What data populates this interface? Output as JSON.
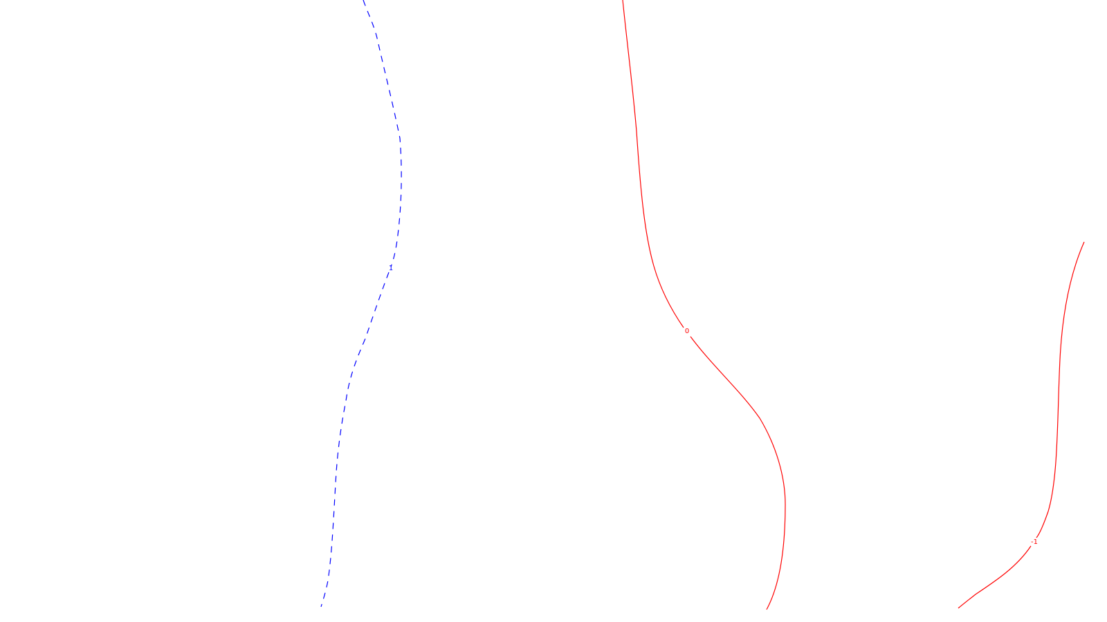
{
  "chart_data": {
    "type": "contour",
    "title": "",
    "xlabel": "",
    "ylabel": "",
    "grid": false,
    "legend": "none",
    "contours": [
      {
        "level": "1",
        "color": "#0000ff",
        "style": "dashed"
      },
      {
        "level": "0",
        "color": "#ff0000",
        "style": "solid"
      },
      {
        "level": "-1",
        "color": "#ff0000",
        "style": "solid"
      }
    ]
  }
}
